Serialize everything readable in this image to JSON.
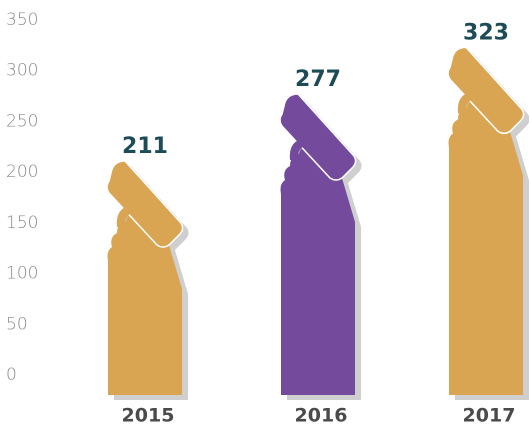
{
  "chart_data": {
    "type": "pictograph",
    "categories": [
      "2015",
      "2016",
      "2017"
    ],
    "values": [
      211,
      277,
      323
    ],
    "colors": [
      "#d9a553",
      "#744a9c",
      "#d9a553"
    ],
    "ylim": [
      0,
      350
    ],
    "yticks": [
      0,
      50,
      100,
      150,
      200,
      250,
      300,
      350
    ]
  }
}
